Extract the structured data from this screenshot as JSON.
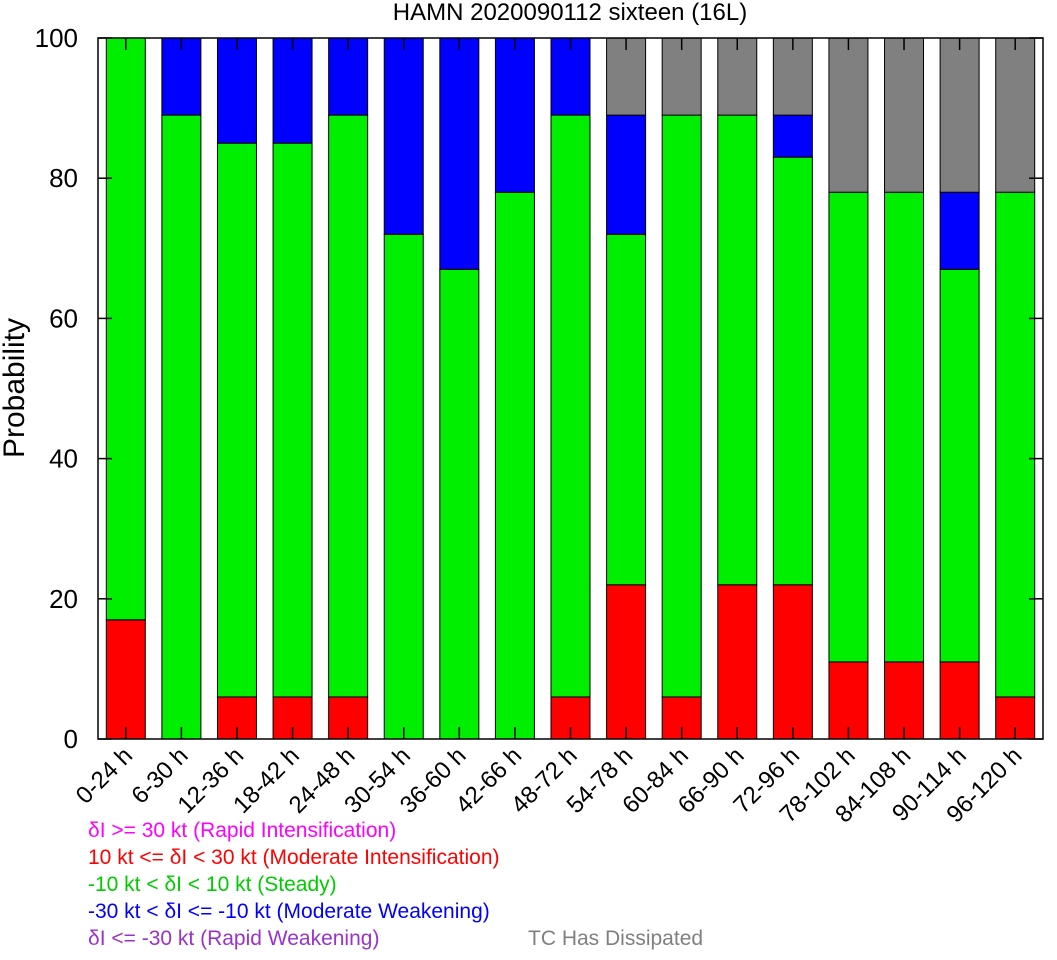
{
  "chart_data": {
    "type": "bar",
    "stacked": true,
    "title": "HAMN 2020090112 sixteen (16L)",
    "ylabel": "Probability",
    "xlabel": "",
    "ylim": [
      0,
      100
    ],
    "yticks": [
      0,
      20,
      40,
      60,
      80,
      100
    ],
    "grid": false,
    "categories": [
      "0-24 h",
      "6-30 h",
      "12-36 h",
      "18-42 h",
      "24-48 h",
      "30-54 h",
      "36-60 h",
      "42-66 h",
      "48-72 h",
      "54-78 h",
      "60-84 h",
      "66-90 h",
      "72-96 h",
      "78-102 h",
      "84-108 h",
      "90-114 h",
      "96-120 h"
    ],
    "series": [
      {
        "name": "Rapid Intensification",
        "color": "#ff00ff",
        "values": [
          0,
          0,
          0,
          0,
          0,
          0,
          0,
          0,
          0,
          0,
          0,
          0,
          0,
          0,
          0,
          0,
          0
        ]
      },
      {
        "name": "Moderate Intensification",
        "color": "#ff0000",
        "values": [
          17,
          0,
          6,
          6,
          6,
          0,
          0,
          0,
          6,
          22,
          6,
          22,
          22,
          11,
          11,
          11,
          6
        ]
      },
      {
        "name": "Steady",
        "color": "#00ee00",
        "values": [
          83,
          89,
          79,
          79,
          83,
          72,
          67,
          78,
          83,
          50,
          83,
          67,
          61,
          67,
          67,
          56,
          72
        ]
      },
      {
        "name": "Moderate Weakening",
        "color": "#0000ff",
        "values": [
          0,
          11,
          15,
          15,
          11,
          28,
          33,
          22,
          11,
          17,
          0,
          0,
          6,
          0,
          0,
          11,
          0
        ]
      },
      {
        "name": "Rapid Weakening",
        "color": "#9933cc",
        "values": [
          0,
          0,
          0,
          0,
          0,
          0,
          0,
          0,
          0,
          0,
          0,
          0,
          0,
          0,
          0,
          0,
          0
        ]
      },
      {
        "name": "TC Has Dissipated",
        "color": "#808080",
        "values": [
          0,
          0,
          0,
          0,
          0,
          0,
          0,
          0,
          0,
          11,
          11,
          11,
          11,
          22,
          22,
          22,
          22
        ]
      }
    ]
  },
  "legend": [
    {
      "text": "δI >= 30 kt (Rapid Intensification)",
      "color": "#ff00ff"
    },
    {
      "text": "10 kt <= δI < 30 kt (Moderate Intensification)",
      "color": "#ff0000"
    },
    {
      "text": "-10 kt < δI < 10 kt (Steady)",
      "color": "#00cc00"
    },
    {
      "text": "-30 kt < δI <= -10 kt (Moderate Weakening)",
      "color": "#0000ff"
    },
    {
      "text": "δI <= -30 kt (Rapid Weakening)",
      "color": "#9933cc"
    }
  ],
  "legend_extra": {
    "text": "TC Has Dissipated",
    "color": "#808080"
  }
}
